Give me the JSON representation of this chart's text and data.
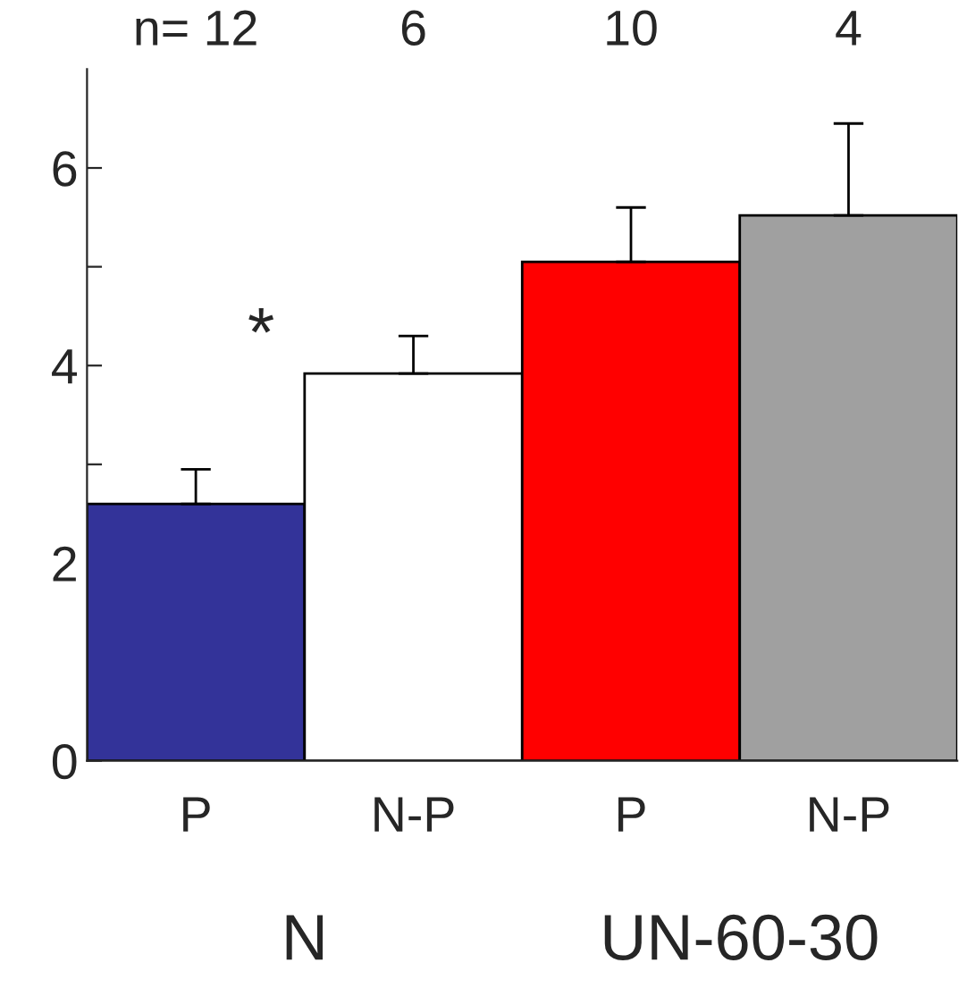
{
  "chart_data": {
    "type": "bar",
    "categories": [
      "P",
      "N-P",
      "P",
      "N-P"
    ],
    "values": [
      2.6,
      3.92,
      5.05,
      5.52
    ],
    "colors": [
      "#333399",
      "#ffffff",
      "#ff0000",
      "#a0a0a0"
    ],
    "errors": [
      [
        2.6,
        2.95
      ],
      [
        3.92,
        4.3
      ],
      [
        5.05,
        5.6
      ],
      [
        5.52,
        6.45
      ]
    ],
    "ylim": [
      0,
      7
    ],
    "yticks": [
      0,
      {
        "value": 1,
        "label": null
      },
      2,
      {
        "value": 3,
        "label": null
      },
      4,
      {
        "value": 5,
        "label": null
      },
      6
    ],
    "annotations": [
      "n= 12",
      "6",
      "10",
      "4",
      "*",
      "N",
      "UN-60-30"
    ],
    "grid": false,
    "legend": false
  }
}
